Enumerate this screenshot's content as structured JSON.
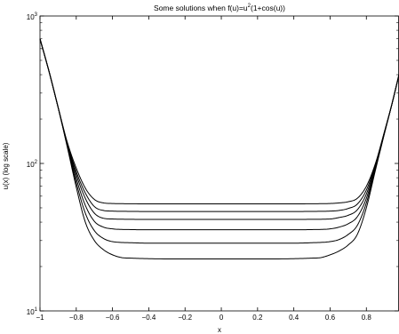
{
  "chart_data": {
    "type": "line",
    "title": {
      "prefix": "Some solutions when f(u)=u",
      "sup": "2",
      "suffix": "(1+cos(u))"
    },
    "xlabel": "x",
    "ylabel": "u(x)  (log scale)",
    "xlim": [
      -1,
      0.98
    ],
    "ylim": [
      10,
      1000
    ],
    "yscale": "log",
    "grid": false,
    "legend": "none",
    "line_color": "#000000",
    "x_ticks": [
      {
        "value": -1,
        "label": "−1"
      },
      {
        "value": -0.8,
        "label": "−0.8"
      },
      {
        "value": -0.6,
        "label": "−0.6"
      },
      {
        "value": -0.4,
        "label": "−0.4"
      },
      {
        "value": -0.2,
        "label": "−0.2"
      },
      {
        "value": 0,
        "label": "0"
      },
      {
        "value": 0.2,
        "label": "0.2"
      },
      {
        "value": 0.4,
        "label": "0.4"
      },
      {
        "value": 0.6,
        "label": "0.6"
      },
      {
        "value": 0.8,
        "label": "0.8"
      }
    ],
    "y_ticks": [
      {
        "value": 10,
        "base": "10",
        "exp": "1"
      },
      {
        "value": 100,
        "base": "10",
        "exp": "2"
      },
      {
        "value": 1000,
        "base": "10",
        "exp": "3"
      }
    ],
    "series": [
      {
        "x": [
          -1.0,
          -0.95,
          -0.9,
          -0.85,
          -0.8,
          -0.75,
          -0.7,
          -0.65,
          -0.6,
          -0.5,
          -0.4,
          -0.2,
          0.0,
          0.2,
          0.4,
          0.5,
          0.6,
          0.65,
          0.7,
          0.75,
          0.8,
          0.85,
          0.9,
          0.94,
          0.98
        ],
        "y": [
          700,
          420,
          240,
          140,
          93,
          68,
          57,
          54,
          53.5,
          53.3,
          53.2,
          53.2,
          53.2,
          53.2,
          53.2,
          53.3,
          53.5,
          54,
          55,
          58,
          70,
          100,
          165,
          250,
          400
        ]
      },
      {
        "x": [
          -1.0,
          -0.95,
          -0.9,
          -0.85,
          -0.8,
          -0.75,
          -0.7,
          -0.65,
          -0.6,
          -0.5,
          -0.4,
          -0.2,
          0.0,
          0.2,
          0.4,
          0.5,
          0.6,
          0.65,
          0.7,
          0.75,
          0.8,
          0.85,
          0.9,
          0.94,
          0.98
        ],
        "y": [
          700,
          420,
          240,
          138,
          88,
          63,
          51,
          48,
          47.5,
          47.3,
          47.2,
          47.2,
          47.2,
          47.2,
          47.2,
          47.3,
          47.5,
          48,
          49.5,
          53,
          66,
          98,
          164,
          250,
          400
        ]
      },
      {
        "x": [
          -1.0,
          -0.95,
          -0.9,
          -0.85,
          -0.8,
          -0.75,
          -0.7,
          -0.65,
          -0.6,
          -0.5,
          -0.4,
          -0.2,
          0.0,
          0.2,
          0.4,
          0.5,
          0.6,
          0.65,
          0.7,
          0.75,
          0.8,
          0.85,
          0.9,
          0.94,
          0.98
        ],
        "y": [
          700,
          420,
          240,
          136,
          84,
          58,
          46,
          42.5,
          42,
          41.8,
          41.7,
          41.7,
          41.7,
          41.7,
          41.7,
          41.8,
          42,
          43,
          44.5,
          48.5,
          62,
          96,
          163,
          250,
          400
        ]
      },
      {
        "x": [
          -1.0,
          -0.95,
          -0.9,
          -0.85,
          -0.8,
          -0.75,
          -0.7,
          -0.65,
          -0.6,
          -0.5,
          -0.4,
          -0.2,
          0.0,
          0.2,
          0.4,
          0.5,
          0.6,
          0.65,
          0.7,
          0.75,
          0.8,
          0.85,
          0.9,
          0.94,
          0.98
        ],
        "y": [
          700,
          420,
          240,
          134,
          79,
          52,
          40.5,
          37,
          36,
          35.6,
          35.5,
          35.5,
          35.5,
          35.5,
          35.5,
          35.6,
          36,
          37,
          39,
          43.5,
          58,
          94,
          162,
          250,
          400
        ]
      },
      {
        "x": [
          -1.0,
          -0.95,
          -0.9,
          -0.85,
          -0.8,
          -0.75,
          -0.7,
          -0.65,
          -0.6,
          -0.5,
          -0.4,
          -0.2,
          0.0,
          0.2,
          0.4,
          0.5,
          0.6,
          0.65,
          0.7,
          0.75,
          0.8,
          0.85,
          0.9,
          0.94,
          0.98
        ],
        "y": [
          700,
          420,
          240,
          132,
          74,
          46,
          35,
          31,
          29.5,
          29,
          28.8,
          28.8,
          28.8,
          28.8,
          28.8,
          29,
          29.5,
          30.5,
          33,
          38,
          54,
          92,
          161,
          250,
          400
        ]
      },
      {
        "x": [
          -1.0,
          -0.95,
          -0.9,
          -0.85,
          -0.8,
          -0.75,
          -0.7,
          -0.65,
          -0.6,
          -0.55,
          -0.5,
          -0.4,
          -0.2,
          0.0,
          0.2,
          0.4,
          0.5,
          0.55,
          0.6,
          0.65,
          0.7,
          0.75,
          0.8,
          0.85,
          0.9,
          0.94,
          0.98
        ],
        "y": [
          700,
          420,
          240,
          130,
          69,
          40,
          30,
          26,
          24,
          23,
          22.8,
          22.6,
          22.5,
          22.5,
          22.5,
          22.6,
          22.8,
          23,
          24,
          25.5,
          28,
          33,
          50,
          90,
          160,
          250,
          400
        ]
      }
    ]
  }
}
